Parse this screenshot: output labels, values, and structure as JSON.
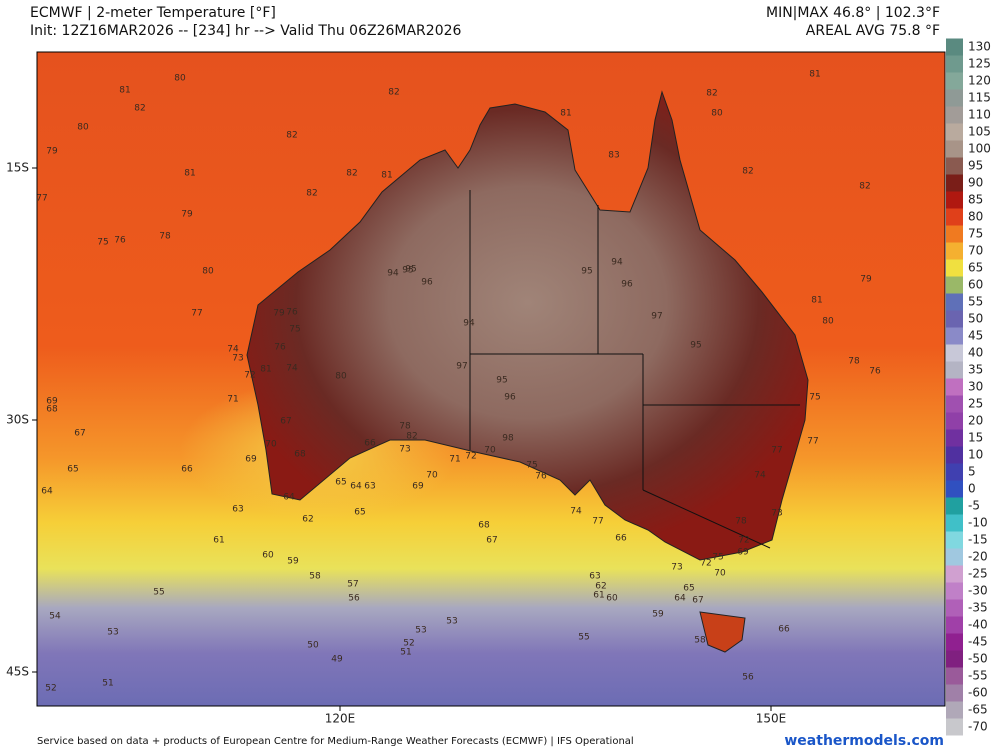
{
  "header": {
    "title": "ECMWF | 2-meter Temperature [°F]",
    "init": "Init: 12Z16MAR2026 -- [234] hr --> Valid Thu 06Z26MAR2026",
    "minmax": "MIN|MAX 46.8° | 102.3°F",
    "areal_avg": "AREAL AVG 75.8 °F"
  },
  "axes": {
    "lat_labels": [
      "15S",
      "30S",
      "45S"
    ],
    "lon_labels": [
      "120E",
      "150E"
    ]
  },
  "colorbar": {
    "ticks": [
      130,
      125,
      120,
      115,
      110,
      105,
      100,
      95,
      90,
      85,
      80,
      75,
      70,
      65,
      60,
      55,
      50,
      45,
      40,
      35,
      30,
      25,
      20,
      15,
      10,
      5,
      0,
      -5,
      -10,
      -15,
      -20,
      -25,
      -30,
      -35,
      -40,
      -45,
      -50,
      -55,
      -60,
      -65,
      -70
    ],
    "colors": [
      "#5a8a80",
      "#6f9a8e",
      "#84a89a",
      "#8f9a96",
      "#a29c98",
      "#b9aa9e",
      "#a89488",
      "#8a5a50",
      "#7a1e18",
      "#b01810",
      "#e0401a",
      "#f07a20",
      "#f5b030",
      "#f0e040",
      "#9ab868",
      "#5f70b8",
      "#6a64b0",
      "#8a8ac8",
      "#c8c8d8",
      "#b4b4c4",
      "#c070c0",
      "#a050b0",
      "#9040a8",
      "#7030a0",
      "#5030a0",
      "#4040b0",
      "#3050c0",
      "#20a0a0",
      "#40c0c8",
      "#80d8e0",
      "#a0c8e0",
      "#d0a0d0",
      "#c080c8",
      "#b060b8",
      "#a040a8",
      "#902090",
      "#802080",
      "#9a5a9a",
      "#a080a8",
      "#b0a8b8",
      "#c8c8cc"
    ]
  },
  "map_labels": [
    80,
    81,
    82,
    80,
    82,
    79,
    81,
    82,
    81,
    77,
    82,
    79,
    75,
    76,
    78,
    80,
    77,
    79,
    76,
    75,
    74,
    73,
    76,
    81,
    72,
    74,
    80,
    71,
    69,
    68,
    67,
    67,
    70,
    68,
    69,
    66,
    73,
    65,
    66,
    70,
    69,
    65,
    64,
    63,
    64,
    64,
    63,
    62,
    65,
    61,
    68,
    67,
    60,
    59,
    58,
    57,
    56,
    55,
    63,
    62,
    61,
    60,
    65,
    64,
    67,
    59,
    54,
    53,
    53,
    55,
    53,
    52,
    50,
    51,
    49,
    51,
    52,
    56,
    66,
    58,
    82,
    81,
    80,
    82,
    82,
    83,
    81,
    82,
    79,
    81,
    80,
    78,
    76,
    75,
    77,
    77,
    74,
    73,
    72,
    69,
    70,
    72,
    73,
    75,
    78,
    95,
    94,
    96,
    95,
    94,
    97,
    95,
    96,
    98,
    95,
    94,
    96,
    97,
    95,
    72,
    71,
    70,
    75,
    76,
    74,
    77,
    66,
    82,
    78
  ],
  "footer": {
    "source": "Service based on data + products of European Centre for Medium-Range Weather Forecasts (ECMWF) | IFS Operational",
    "brand": "weathermodels.com"
  }
}
